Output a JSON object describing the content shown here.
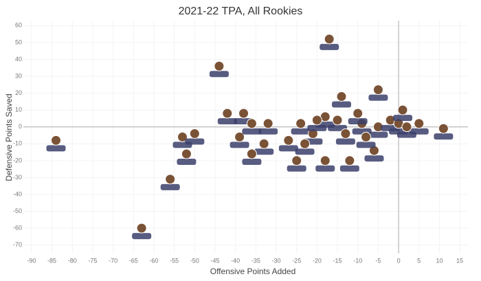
{
  "chart_data": {
    "type": "scatter",
    "title": "2021-22 TPA, All Rookies",
    "x_label": "Offensive Points Added",
    "y_label": "Defensive Points Saved",
    "x": [
      -17,
      -44,
      -84,
      -5,
      -14,
      11,
      -56,
      -63,
      -42,
      -38,
      -53,
      -50,
      -52,
      -39,
      -36,
      -32,
      -33,
      -36,
      -25,
      -24,
      -27,
      -18,
      -12,
      -21,
      -18,
      -15,
      -13,
      -9,
      -10,
      -6,
      -5,
      -2,
      0,
      1,
      5,
      2,
      -8,
      -20,
      -23
    ],
    "values": [
      50,
      34,
      -10,
      20,
      16,
      -3,
      -33,
      -62,
      6,
      6,
      -8,
      -6,
      -18,
      -8,
      0,
      0,
      -12,
      -18,
      -22,
      0,
      -10,
      -22,
      -22,
      -6,
      4,
      2,
      -6,
      0,
      6,
      -16,
      -2,
      2,
      0,
      8,
      0,
      -2,
      -8,
      2,
      -12
    ],
    "head_color": "#7a5236",
    "jersey_color": "#3b3f6b",
    "xlim": [
      -92,
      17
    ],
    "ylim": [
      -75,
      63
    ],
    "xticks": [
      -90,
      -85,
      -80,
      -75,
      -70,
      -65,
      -60,
      -55,
      -50,
      -45,
      -40,
      -35,
      -30,
      -25,
      -20,
      -15,
      -10,
      -5,
      0,
      5,
      10,
      15
    ],
    "yticks": [
      -70,
      -60,
      -50,
      -40,
      -30,
      -20,
      -10,
      0,
      10,
      20,
      30,
      40,
      50,
      60
    ],
    "grid": true
  }
}
